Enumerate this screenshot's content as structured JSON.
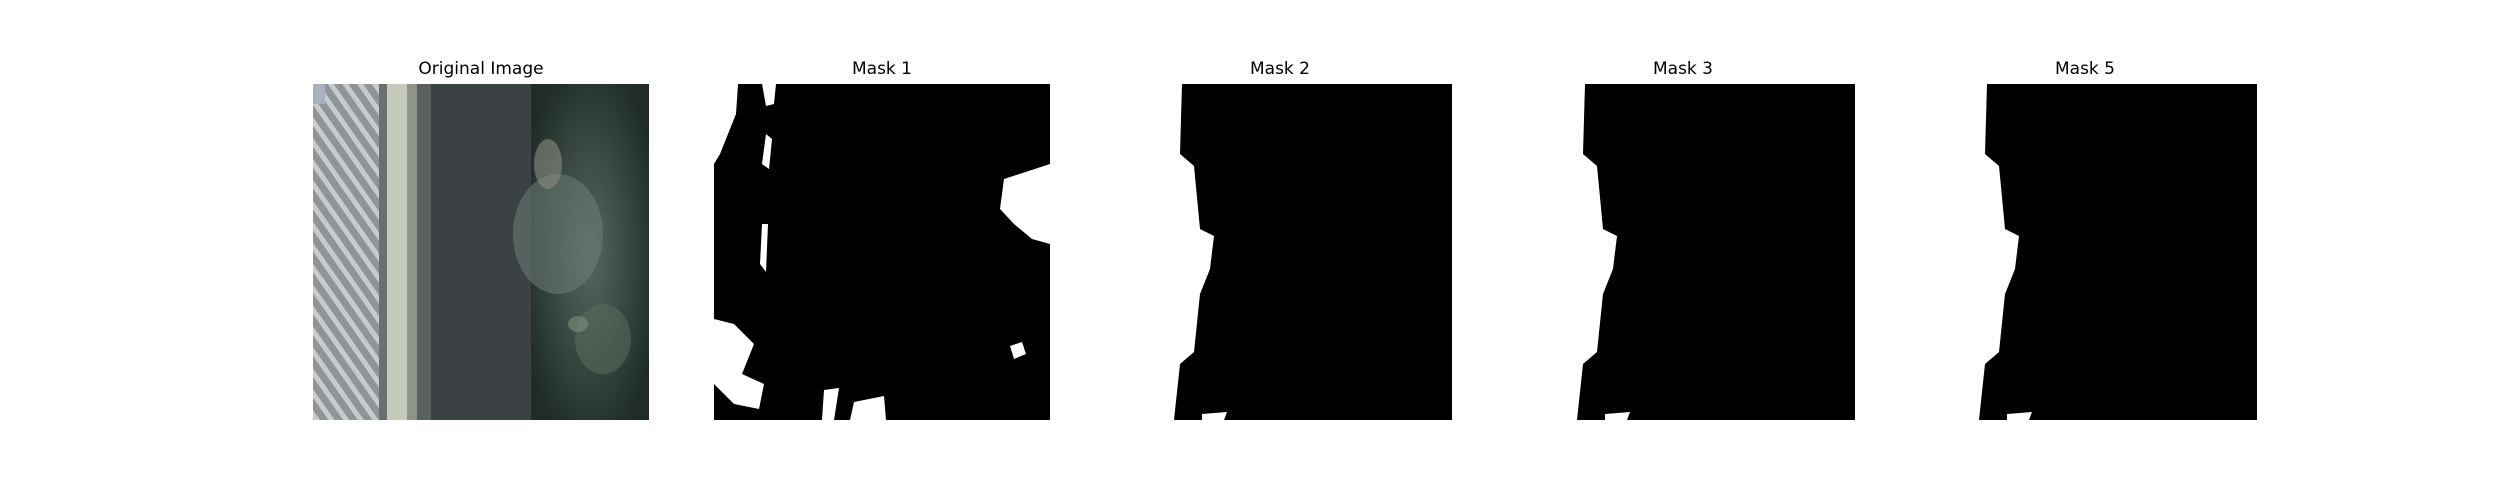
{
  "figure": {
    "panels": [
      {
        "title": "Original Image"
      },
      {
        "title": "Mask 1"
      },
      {
        "title": "Mask 2"
      },
      {
        "title": "Mask 3"
      },
      {
        "title": "Mask 5"
      }
    ]
  },
  "colors": {
    "background": "#ffffff",
    "mask_fill": "#000000",
    "mask_foreground": "#ffffff",
    "road": "#3c4143",
    "vegetation": "#2a3b36",
    "curb": "#c9cdbd"
  }
}
